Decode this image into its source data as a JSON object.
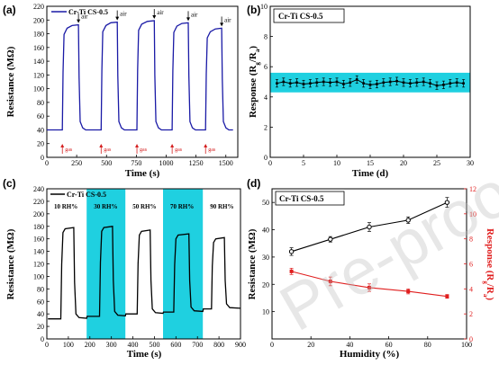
{
  "watermark": "Pre-proof",
  "chart_data": [
    {
      "panel": "(a)",
      "type": "line",
      "xlabel": "Time (s)",
      "ylabel": "Resistance (MΩ)",
      "xlim": [
        0,
        1600
      ],
      "ylim": [
        0,
        220
      ],
      "xticks": [
        0,
        250,
        500,
        750,
        1000,
        1250,
        1500
      ],
      "yticks": [
        0,
        20,
        40,
        60,
        80,
        100,
        120,
        140,
        160,
        180,
        200,
        220
      ],
      "series": [
        {
          "name": "Cr-Ti CS-0.5",
          "color": "#1a1aa6"
        }
      ],
      "baseline": 40,
      "cycles": [
        {
          "gas_on": 130,
          "air_on": 265,
          "peak": 193
        },
        {
          "gas_on": 455,
          "air_on": 590,
          "peak": 197
        },
        {
          "gas_on": 755,
          "air_on": 900,
          "peak": 199
        },
        {
          "gas_on": 1050,
          "air_on": 1185,
          "peak": 196
        },
        {
          "gas_on": 1330,
          "air_on": 1465,
          "peak": 188
        }
      ],
      "gas_label": "gas",
      "air_label": "air"
    },
    {
      "panel": "(b)",
      "type": "line",
      "xlabel": "Time (d)",
      "ylabel": "Response (Rg/Ra)",
      "xlim": [
        0,
        30
      ],
      "ylim": [
        0,
        10
      ],
      "xticks": [
        0,
        5,
        10,
        15,
        20,
        25,
        30
      ],
      "yticks": [
        0,
        2,
        4,
        6,
        8,
        10
      ],
      "band": [
        4.3,
        5.6
      ],
      "band_color": "#1fd0e0",
      "series": [
        {
          "name": "Cr-Ti CS-0.5",
          "color": "#000000"
        }
      ],
      "x": [
        1,
        2,
        3,
        4,
        5,
        6,
        7,
        8,
        9,
        10,
        11,
        12,
        13,
        14,
        15,
        16,
        17,
        18,
        19,
        20,
        21,
        22,
        23,
        24,
        25,
        26,
        27,
        28,
        29
      ],
      "y": [
        4.9,
        5.0,
        4.9,
        4.95,
        4.85,
        4.9,
        4.95,
        5.0,
        4.95,
        5.0,
        4.85,
        4.95,
        5.15,
        4.9,
        4.8,
        4.85,
        4.95,
        5.0,
        5.05,
        4.95,
        4.9,
        4.95,
        5.0,
        4.9,
        4.75,
        4.8,
        4.9,
        4.95,
        4.9
      ],
      "err": 0.25
    },
    {
      "panel": "(c)",
      "type": "line",
      "xlabel": "Time (s)",
      "ylabel": "Resistance (MΩ)",
      "xlim": [
        0,
        900
      ],
      "ylim": [
        0,
        240
      ],
      "xticks": [
        0,
        100,
        200,
        300,
        400,
        500,
        600,
        700,
        800,
        900
      ],
      "yticks": [
        0,
        20,
        40,
        60,
        80,
        100,
        120,
        140,
        160,
        180,
        200,
        220,
        240
      ],
      "series": [
        {
          "name": "Cr-Ti CS-0.5",
          "color": "#000000"
        }
      ],
      "highlight_color": "#1fd0e0",
      "segments": [
        {
          "label": "10 RH%",
          "start": 0,
          "end": 185,
          "on": 65,
          "off": 125,
          "base": 32,
          "peak": 178,
          "highlight": false
        },
        {
          "label": "30 RH%",
          "start": 185,
          "end": 365,
          "on": 245,
          "off": 305,
          "base": 36,
          "peak": 180,
          "highlight": true
        },
        {
          "label": "50 RH%",
          "start": 365,
          "end": 540,
          "on": 420,
          "off": 480,
          "base": 40,
          "peak": 174,
          "highlight": false
        },
        {
          "label": "70 RH%",
          "start": 540,
          "end": 725,
          "on": 590,
          "off": 660,
          "base": 43,
          "peak": 168,
          "highlight": true
        },
        {
          "label": "90 RH%",
          "start": 725,
          "end": 900,
          "on": 765,
          "off": 825,
          "base": 48,
          "peak": 162,
          "highlight": false
        }
      ]
    },
    {
      "panel": "(d)",
      "type": "line",
      "xlabel": "Humidity (%)",
      "ylabel": "Resistance (MΩ)",
      "y2label": "Response (Rg/Ra)",
      "xlim": [
        0,
        100
      ],
      "ylim": [
        0,
        55
      ],
      "y2lim": [
        0,
        12
      ],
      "xticks": [
        0,
        20,
        40,
        60,
        80,
        100
      ],
      "yticks": [
        10,
        20,
        30,
        40,
        50
      ],
      "y2ticks": [
        0,
        2,
        4,
        6,
        8,
        10,
        12
      ],
      "series": [
        {
          "name": "Cr-Ti CS-0.5",
          "axis": "left",
          "color": "#000000",
          "marker": "circle",
          "x": [
            10,
            30,
            50,
            70,
            90
          ],
          "y": [
            32,
            36.5,
            41,
            43.5,
            50
          ],
          "err": [
            1.4,
            1.0,
            1.6,
            1.2,
            1.8
          ]
        },
        {
          "axis": "right",
          "color": "#e01e1e",
          "marker": "square",
          "x": [
            10,
            30,
            50,
            70,
            90
          ],
          "y": [
            5.4,
            4.6,
            4.1,
            3.8,
            3.4
          ],
          "err": [
            0.25,
            0.35,
            0.3,
            0.2,
            0.15
          ]
        }
      ]
    }
  ]
}
